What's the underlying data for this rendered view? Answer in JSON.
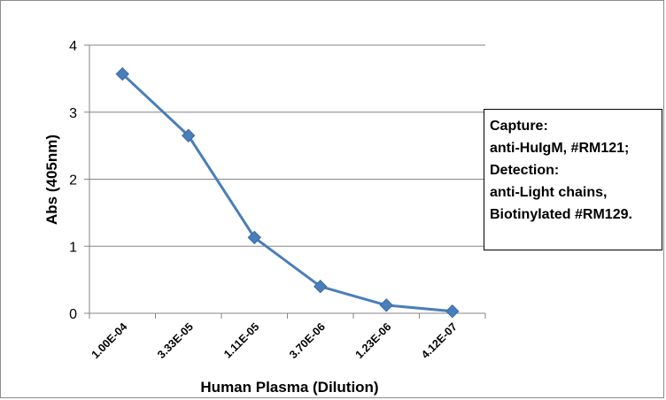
{
  "chart_data": {
    "type": "line",
    "categories": [
      "1.00E-04",
      "3.33E-05",
      "1.11E-05",
      "3.70E-06",
      "1.23E-06",
      "4.12E-07"
    ],
    "series": [
      {
        "values": [
          3.57,
          2.65,
          1.13,
          0.4,
          0.12,
          0.03
        ],
        "color": "#4a7ebb",
        "marker": "diamond"
      }
    ],
    "xlabel": "Human Plasma (Dilution)",
    "ylabel": "Abs (405nm)",
    "ylim": [
      0,
      4
    ],
    "yticks": [
      "0",
      "1",
      "2",
      "3",
      "4"
    ],
    "grid": true,
    "annotation": {
      "lines": [
        "Capture:",
        "anti-HuIgM, #RM121;",
        "Detection:",
        "anti-Light chains,",
        "Biotinylated #RM129."
      ],
      "placement": "right"
    }
  }
}
